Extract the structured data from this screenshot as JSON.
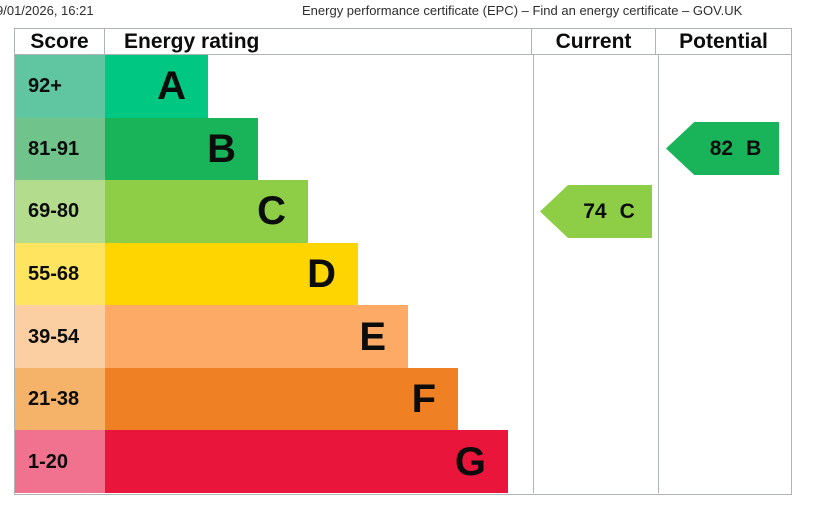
{
  "page": {
    "datetime": "9/01/2026, 16:21",
    "title": "Energy performance certificate (EPC) – Find an energy certificate – GOV.UK"
  },
  "table": {
    "headers": {
      "score": "Score",
      "rating": "Energy rating",
      "current": "Current",
      "potential": "Potential"
    },
    "bands": [
      {
        "range": "92+",
        "letter": "A",
        "color": "#00c781",
        "score_color": "#60c6a2"
      },
      {
        "range": "81-91",
        "letter": "B",
        "color": "#19b459",
        "score_color": "#6fc38b"
      },
      {
        "range": "69-80",
        "letter": "C",
        "color": "#8dce46",
        "score_color": "#b3dd8d"
      },
      {
        "range": "55-68",
        "letter": "D",
        "color": "#ffd500",
        "score_color": "#ffe460"
      },
      {
        "range": "39-54",
        "letter": "E",
        "color": "#fcaa65",
        "score_color": "#fccfa2"
      },
      {
        "range": "21-38",
        "letter": "F",
        "color": "#ef8023",
        "score_color": "#f5b269"
      },
      {
        "range": "1-20",
        "letter": "G",
        "color": "#e9153b",
        "score_color": "#f1728f"
      }
    ],
    "current": {
      "value": "74",
      "letter": "C",
      "color": "#8dce46"
    },
    "potential": {
      "value": "82",
      "letter": "B",
      "color": "#19b459"
    }
  },
  "chart_data": {
    "type": "bar",
    "title": "Energy performance certificate (EPC) – Find an energy certificate – GOV.UK",
    "columns": [
      "Score",
      "Energy rating",
      "Current",
      "Potential"
    ],
    "categories": [
      "A",
      "B",
      "C",
      "D",
      "E",
      "F",
      "G"
    ],
    "score_ranges": [
      "92+",
      "81-91",
      "69-80",
      "55-68",
      "39-54",
      "21-38",
      "1-20"
    ],
    "bar_lengths_relative": [
      1,
      2,
      3,
      4,
      5,
      6,
      7
    ],
    "band_colors": [
      "#00c781",
      "#19b459",
      "#8dce46",
      "#ffd500",
      "#fcaa65",
      "#ef8023",
      "#e9153b"
    ],
    "score_cell_colors": [
      "#60c6a2",
      "#6fc38b",
      "#b3dd8d",
      "#ffe460",
      "#fccfa2",
      "#f5b269",
      "#f1728f"
    ],
    "current": {
      "score": 74,
      "band": "C"
    },
    "potential": {
      "score": 82,
      "band": "B"
    },
    "legend_position": "none",
    "grid": false
  }
}
